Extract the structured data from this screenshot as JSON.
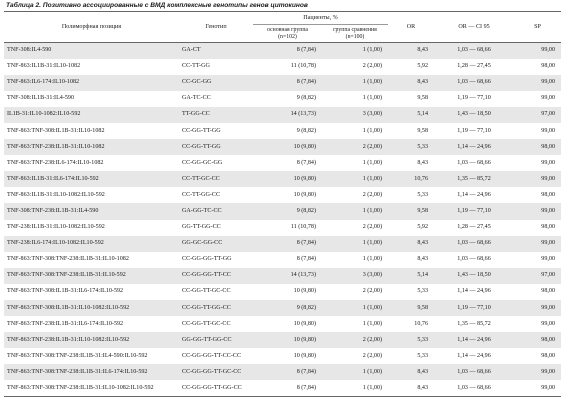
{
  "caption": "Таблица 2. Позитивно ассоциированные с ВМД комплексные генотипы генов цитокинов",
  "headers": {
    "position": "Полиморфная позиция",
    "genotype": "Генотип",
    "patients": "Пациенты, %",
    "main_group": "основная группа",
    "main_n": "(n=102)",
    "compare_group": "группа сравнения",
    "compare_n": "(n=100)",
    "or": "OR",
    "ci": "OR — CI 95",
    "sp": "SP"
  },
  "rows": [
    {
      "pos": "TNF-308:IL4-590",
      "gen": "GA-CT",
      "main": "8 (7,84)",
      "comp": "1 (1,00)",
      "or": "8,43",
      "ci": "1,03 — 68,66",
      "sp": "99,00"
    },
    {
      "pos": "TNF-863:IL1B-31:IL10-1082",
      "gen": "CC-TT-GG",
      "main": "11 (10,78)",
      "comp": "2 (2,00)",
      "or": "5,92",
      "ci": "1,28 — 27,45",
      "sp": "98,00"
    },
    {
      "pos": "TNF-863:IL6-174:IL10-1082",
      "gen": "CC-GC-GG",
      "main": "8 (7,84)",
      "comp": "1 (1,00)",
      "or": "8,43",
      "ci": "1,03 — 68,66",
      "sp": "99,00"
    },
    {
      "pos": "TNF-308:IL1B-31:IL4-590",
      "gen": "GA-TC-CC",
      "main": "9 (8,82)",
      "comp": "1 (1,00)",
      "or": "9,58",
      "ci": "1,19 — 77,10",
      "sp": "99,00"
    },
    {
      "pos": "IL1B-31:IL10-1082:IL10-592",
      "gen": "TT-GG-CC",
      "main": "14 (13,73)",
      "comp": "3 (3,00)",
      "or": "5,14",
      "ci": "1,43 — 18,50",
      "sp": "97,00"
    },
    {
      "pos": "TNF-863:TNF-308:IL1B-31:IL10-1082",
      "gen": "CC-GG-TT-GG",
      "main": "9 (8,82)",
      "comp": "1 (1,00)",
      "or": "9,58",
      "ci": "1,19 — 77,10",
      "sp": "99,00"
    },
    {
      "pos": "TNF-863:TNF-238:IL1B-31:IL10-1082",
      "gen": "CC-GG-TT-GG",
      "main": "10 (9,80)",
      "comp": "2 (2,00)",
      "or": "5,33",
      "ci": "1,14 — 24,96",
      "sp": "98,00"
    },
    {
      "pos": "TNF-863:TNF-238:IL6-174:IL10-1082",
      "gen": "CC-GG-GC-GG",
      "main": "8 (7,84)",
      "comp": "1 (1,00)",
      "or": "8,43",
      "ci": "1,03 — 68,66",
      "sp": "99,00"
    },
    {
      "pos": "TNF-863:IL1B-31:IL6-174:IL10-592",
      "gen": "CC-TT-GC-CC",
      "main": "10 (9,80)",
      "comp": "1 (1,00)",
      "or": "10,76",
      "ci": "1,35 — 85,72",
      "sp": "99,00"
    },
    {
      "pos": "TNF-863:IL1B-31:IL10-1082:IL10-592",
      "gen": "CC-TT-GG-CC",
      "main": "10 (9,80)",
      "comp": "2 (2,00)",
      "or": "5,33",
      "ci": "1,14 — 24,96",
      "sp": "98,00"
    },
    {
      "pos": "TNF-308:TNF-238:IL1B-31:IL4-590",
      "gen": "GA-GG-TC-CC",
      "main": "9 (8,82)",
      "comp": "1 (1,00)",
      "or": "9,58",
      "ci": "1,19 — 77,10",
      "sp": "99,00"
    },
    {
      "pos": "TNF-238:IL1B-31:IL10-1082:IL10-592",
      "gen": "GG-TT-GG-CC",
      "main": "11 (10,78)",
      "comp": "2 (2,00)",
      "or": "5,92",
      "ci": "1,28 — 27,45",
      "sp": "98,00"
    },
    {
      "pos": "TNF-238:IL6-174:IL10-1082:IL10-592",
      "gen": "GG-GC-GG-CC",
      "main": "8 (7,84)",
      "comp": "1 (1,00)",
      "or": "8,43",
      "ci": "1,03 — 68,66",
      "sp": "99,00"
    },
    {
      "pos": "TNF-863:TNF-308:TNF-238:IL1B-31:IL10-1082",
      "gen": "CC-GG-GG-TT-GG",
      "main": "8 (7,84)",
      "comp": "1 (1,00)",
      "or": "8,43",
      "ci": "1,03 — 68,66",
      "sp": "99,00"
    },
    {
      "pos": "TNF-863:TNF-308:TNF-238:IL1B-31:IL10-592",
      "gen": "CC-GG-GG-TT-CC",
      "main": "14 (13,73)",
      "comp": "3 (3,00)",
      "or": "5,14",
      "ci": "1,43 — 18,50",
      "sp": "97,00"
    },
    {
      "pos": "TNF-863:TNF-308:IL1B-31:IL6-174:IL10-592",
      "gen": "CC-GG-TT-GC-CC",
      "main": "10 (9,80)",
      "comp": "2 (2,00)",
      "or": "5,33",
      "ci": "1,14 — 24,96",
      "sp": "98,00"
    },
    {
      "pos": "TNF-863:TNF-308:IL1B-31:IL10-1082:IL10-592",
      "gen": "CC-GG-TT-GG-CC",
      "main": "9 (8,82)",
      "comp": "1 (1,00)",
      "or": "9,58",
      "ci": "1,19 — 77,10",
      "sp": "99,00"
    },
    {
      "pos": "TNF-863:TNF-238:IL1B-31:IL6-174:IL10-592",
      "gen": "CC-GG-TT-GC-CC",
      "main": "10 (9,80)",
      "comp": "1 (1,00)",
      "or": "10,76",
      "ci": "1,35 — 85,72",
      "sp": "99,00"
    },
    {
      "pos": "TNF-863:TNF-238:IL1B-31:IL10-1082:IL10-592",
      "gen": "GG-GG-TT-GG-CC",
      "main": "10 (9,80)",
      "comp": "2 (2,00)",
      "or": "5,33",
      "ci": "1,14 — 24,96",
      "sp": "98,00"
    },
    {
      "pos": "TNF-863:TNF-308:TNF-238:IL1B-31:IL4-590:IL10-592",
      "gen": "CC-GG-GG-TT-CC-CC",
      "main": "10 (9,80)",
      "comp": "2 (2,00)",
      "or": "5,33",
      "ci": "1,14 — 24,96",
      "sp": "98,00"
    },
    {
      "pos": "TNF-863:TNF-308:TNF-238:IL1B-31:IL6-174:IL10-592",
      "gen": "CC-GG-GG-TT-GC-CC",
      "main": "8 (7,84)",
      "comp": "1 (1,00)",
      "or": "8,43",
      "ci": "1,03 — 68,66",
      "sp": "99,00"
    },
    {
      "pos": "TNF-863:TNF-308:TNF-238:IL1B-31:IL10-1082:IL10-592",
      "gen": "CC-GG-GG-TT-GG-CC",
      "main": "8 (7,84)",
      "comp": "1 (1,00)",
      "or": "8,43",
      "ci": "1,03 — 68,66",
      "sp": "99,00"
    }
  ]
}
